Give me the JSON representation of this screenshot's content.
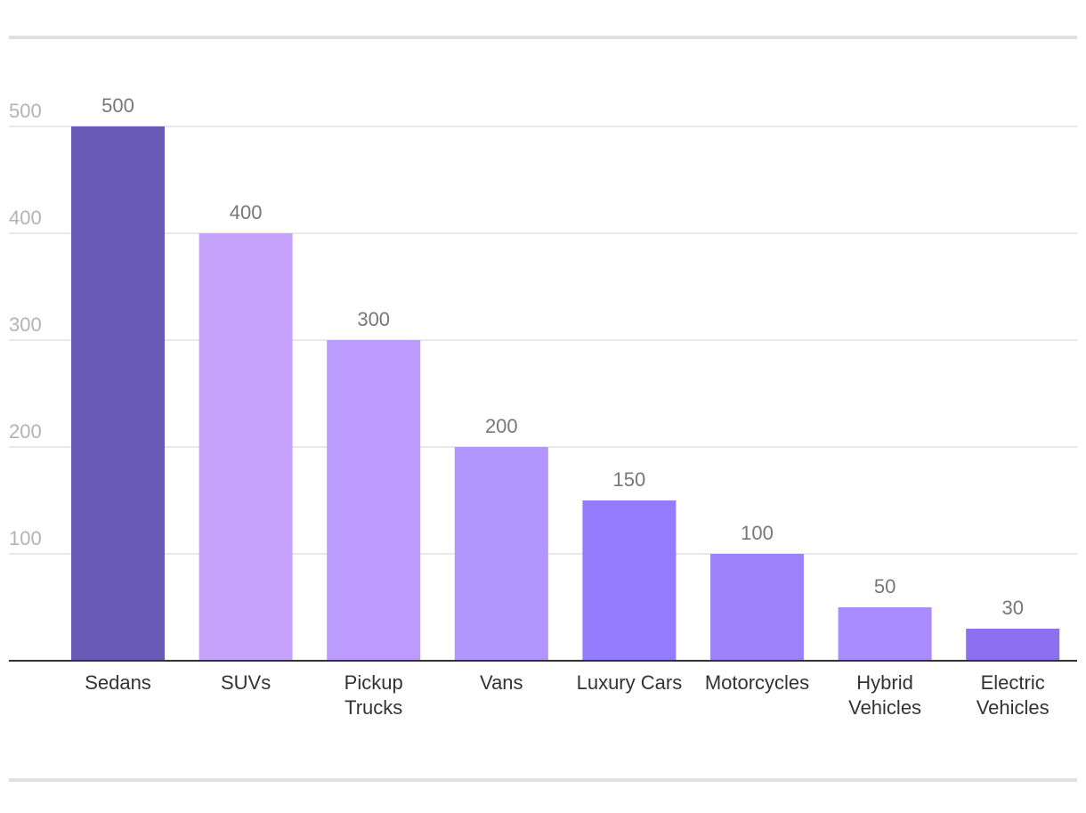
{
  "chart_data": {
    "type": "bar",
    "title": "",
    "xlabel": "",
    "ylabel": "",
    "categories": [
      "Sedans",
      "SUVs",
      "Pickup Trucks",
      "Vans",
      "Luxury Cars",
      "Motorcycles",
      "Hybrid Vehicles",
      "Electric Vehicles"
    ],
    "category_lines": [
      [
        "Sedans"
      ],
      [
        "SUVs"
      ],
      [
        "Pickup",
        "Trucks"
      ],
      [
        "Vans"
      ],
      [
        "Luxury Cars"
      ],
      [
        "Motorcycles"
      ],
      [
        "Hybrid",
        "Vehicles"
      ],
      [
        "Electric",
        "Vehicles"
      ]
    ],
    "values": [
      500,
      400,
      300,
      200,
      150,
      100,
      50,
      30
    ],
    "value_labels": [
      "500",
      "400",
      "300",
      "200",
      "150",
      "100",
      "50",
      "30"
    ],
    "colors": [
      "#6a5ab8",
      "#c6a4fc",
      "#bb9bfd",
      "#b196fd",
      "#957bfd",
      "#9c83fc",
      "#a98cfd",
      "#8d70f0"
    ],
    "yticks": [
      100,
      200,
      300,
      400,
      500
    ],
    "ytick_labels": [
      "100",
      "200",
      "300",
      "400",
      "500"
    ],
    "ylim": [
      0,
      500
    ],
    "grid": true,
    "legend": "none"
  }
}
